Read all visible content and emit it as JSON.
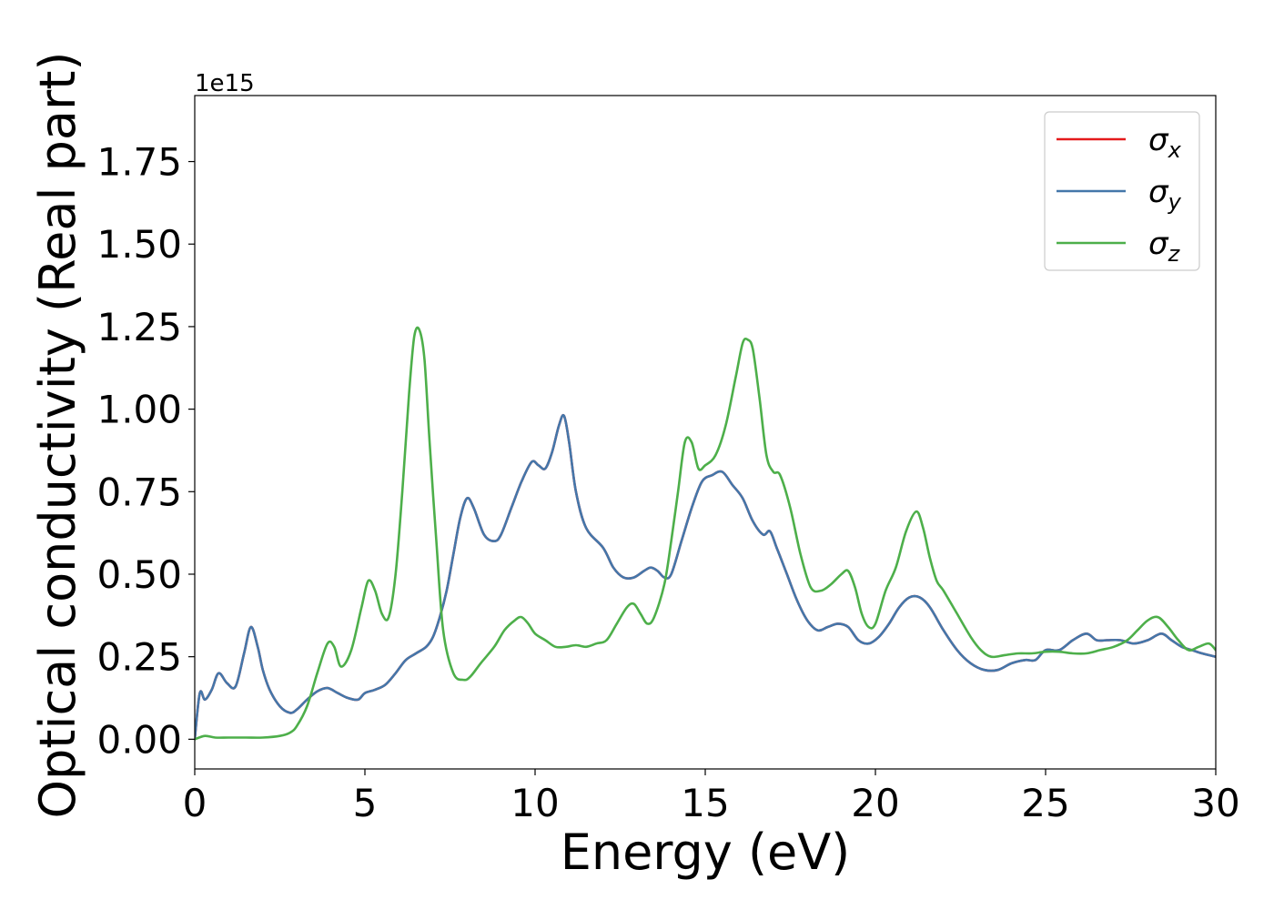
{
  "chart_data": {
    "type": "line",
    "xlabel": "Energy (eV)",
    "ylabel": "Optical conductivity (Real part)",
    "offset_text": "1e15",
    "xlim": [
      0,
      30
    ],
    "ylim": [
      -0.09,
      1.95
    ],
    "xticks": [
      0,
      5,
      10,
      15,
      20,
      25,
      30
    ],
    "xtick_labels": [
      "0",
      "5",
      "10",
      "15",
      "20",
      "25",
      "30"
    ],
    "yticks": [
      0.0,
      0.25,
      0.5,
      0.75,
      1.0,
      1.25,
      1.5,
      1.75
    ],
    "ytick_labels": [
      "0.00",
      "0.25",
      "0.50",
      "0.75",
      "1.00",
      "1.25",
      "1.50",
      "1.75"
    ],
    "grid": false,
    "legend_position": "top-right",
    "series": [
      {
        "name": "σ",
        "subscript": "x",
        "color": "#e41a1c",
        "x": [
          0,
          0.15,
          0.3,
          0.5,
          0.7,
          0.95,
          1.2,
          1.45,
          1.65,
          1.85,
          2.0,
          2.2,
          2.5,
          2.8,
          3.0,
          3.3,
          3.6,
          3.9,
          4.2,
          4.5,
          4.8,
          5.0,
          5.3,
          5.6,
          5.9,
          6.2,
          6.5,
          6.8,
          7.0,
          7.2,
          7.4,
          7.6,
          7.8,
          8.0,
          8.2,
          8.5,
          8.8,
          9.0,
          9.3,
          9.6,
          9.9,
          10.1,
          10.3,
          10.5,
          10.7,
          10.85,
          11.0,
          11.2,
          11.5,
          12.0,
          12.3,
          12.6,
          12.9,
          13.2,
          13.4,
          13.6,
          13.8,
          14.0,
          14.3,
          14.6,
          14.9,
          15.2,
          15.5,
          15.8,
          16.1,
          16.4,
          16.7,
          16.9,
          17.1,
          17.4,
          17.7,
          18.0,
          18.3,
          18.6,
          18.9,
          19.2,
          19.5,
          19.8,
          20.1,
          20.4,
          20.7,
          21.0,
          21.3,
          21.6,
          22.0,
          22.4,
          22.8,
          23.2,
          23.6,
          24.0,
          24.4,
          24.7,
          25.0,
          25.4,
          25.8,
          26.2,
          26.5,
          26.8,
          27.2,
          27.6,
          28.0,
          28.4,
          28.7,
          29.0,
          29.3,
          29.6,
          30.0
        ],
        "values": [
          0,
          0.14,
          0.12,
          0.15,
          0.2,
          0.17,
          0.16,
          0.26,
          0.34,
          0.28,
          0.21,
          0.15,
          0.1,
          0.08,
          0.09,
          0.12,
          0.145,
          0.155,
          0.14,
          0.125,
          0.12,
          0.14,
          0.15,
          0.165,
          0.2,
          0.24,
          0.26,
          0.28,
          0.31,
          0.37,
          0.45,
          0.56,
          0.67,
          0.73,
          0.7,
          0.62,
          0.6,
          0.62,
          0.7,
          0.78,
          0.84,
          0.83,
          0.82,
          0.87,
          0.95,
          0.98,
          0.9,
          0.75,
          0.64,
          0.58,
          0.52,
          0.49,
          0.49,
          0.51,
          0.52,
          0.51,
          0.49,
          0.5,
          0.6,
          0.7,
          0.78,
          0.8,
          0.81,
          0.77,
          0.73,
          0.66,
          0.62,
          0.63,
          0.58,
          0.5,
          0.42,
          0.36,
          0.33,
          0.34,
          0.35,
          0.34,
          0.3,
          0.29,
          0.31,
          0.35,
          0.4,
          0.43,
          0.43,
          0.4,
          0.33,
          0.27,
          0.23,
          0.21,
          0.21,
          0.23,
          0.24,
          0.24,
          0.27,
          0.27,
          0.3,
          0.32,
          0.3,
          0.3,
          0.3,
          0.29,
          0.3,
          0.32,
          0.3,
          0.28,
          0.27,
          0.26,
          0.25
        ]
      },
      {
        "name": "σ",
        "subscript": "y",
        "color": "#4477aa",
        "x": [
          0,
          0.15,
          0.3,
          0.5,
          0.7,
          0.95,
          1.2,
          1.45,
          1.65,
          1.85,
          2.0,
          2.2,
          2.5,
          2.8,
          3.0,
          3.3,
          3.6,
          3.9,
          4.2,
          4.5,
          4.8,
          5.0,
          5.3,
          5.6,
          5.9,
          6.2,
          6.5,
          6.8,
          7.0,
          7.2,
          7.4,
          7.6,
          7.8,
          8.0,
          8.2,
          8.5,
          8.8,
          9.0,
          9.3,
          9.6,
          9.9,
          10.1,
          10.3,
          10.5,
          10.7,
          10.85,
          11.0,
          11.2,
          11.5,
          12.0,
          12.3,
          12.6,
          12.9,
          13.2,
          13.4,
          13.6,
          13.8,
          14.0,
          14.3,
          14.6,
          14.9,
          15.2,
          15.5,
          15.8,
          16.1,
          16.4,
          16.7,
          16.9,
          17.1,
          17.4,
          17.7,
          18.0,
          18.3,
          18.6,
          18.9,
          19.2,
          19.5,
          19.8,
          20.1,
          20.4,
          20.7,
          21.0,
          21.3,
          21.6,
          22.0,
          22.4,
          22.8,
          23.2,
          23.6,
          24.0,
          24.4,
          24.7,
          25.0,
          25.4,
          25.8,
          26.2,
          26.5,
          26.8,
          27.2,
          27.6,
          28.0,
          28.4,
          28.7,
          29.0,
          29.3,
          29.6,
          30.0
        ],
        "values": [
          0,
          0.14,
          0.12,
          0.15,
          0.2,
          0.17,
          0.16,
          0.26,
          0.34,
          0.28,
          0.21,
          0.15,
          0.1,
          0.08,
          0.09,
          0.12,
          0.145,
          0.155,
          0.14,
          0.125,
          0.12,
          0.14,
          0.15,
          0.165,
          0.2,
          0.24,
          0.26,
          0.28,
          0.31,
          0.37,
          0.45,
          0.56,
          0.67,
          0.73,
          0.7,
          0.62,
          0.6,
          0.62,
          0.7,
          0.78,
          0.84,
          0.83,
          0.82,
          0.87,
          0.95,
          0.98,
          0.9,
          0.75,
          0.64,
          0.58,
          0.52,
          0.49,
          0.49,
          0.51,
          0.52,
          0.51,
          0.49,
          0.5,
          0.6,
          0.7,
          0.78,
          0.8,
          0.81,
          0.77,
          0.73,
          0.66,
          0.62,
          0.63,
          0.58,
          0.5,
          0.42,
          0.36,
          0.33,
          0.34,
          0.35,
          0.34,
          0.3,
          0.29,
          0.31,
          0.35,
          0.4,
          0.43,
          0.43,
          0.4,
          0.33,
          0.27,
          0.23,
          0.21,
          0.21,
          0.23,
          0.24,
          0.24,
          0.27,
          0.27,
          0.3,
          0.32,
          0.3,
          0.3,
          0.3,
          0.29,
          0.3,
          0.32,
          0.3,
          0.28,
          0.27,
          0.26,
          0.25
        ]
      },
      {
        "name": "σ",
        "subscript": "z",
        "color": "#4daf4a",
        "x": [
          0,
          0.3,
          0.6,
          1.0,
          1.5,
          2.0,
          2.5,
          2.8,
          3.0,
          3.3,
          3.6,
          3.9,
          4.1,
          4.3,
          4.6,
          4.9,
          5.1,
          5.3,
          5.5,
          5.7,
          5.9,
          6.1,
          6.3,
          6.45,
          6.6,
          6.75,
          6.9,
          7.1,
          7.3,
          7.6,
          7.9,
          8.1,
          8.4,
          8.8,
          9.1,
          9.4,
          9.6,
          9.8,
          10.0,
          10.3,
          10.6,
          10.9,
          11.2,
          11.5,
          11.8,
          12.1,
          12.4,
          12.7,
          12.9,
          13.1,
          13.3,
          13.5,
          13.8,
          14.0,
          14.2,
          14.4,
          14.6,
          14.8,
          15.0,
          15.3,
          15.6,
          15.9,
          16.1,
          16.25,
          16.4,
          16.6,
          16.8,
          17.0,
          17.2,
          17.5,
          17.8,
          18.1,
          18.4,
          18.7,
          19.0,
          19.2,
          19.4,
          19.6,
          19.8,
          20.0,
          20.3,
          20.6,
          20.9,
          21.2,
          21.4,
          21.6,
          21.8,
          22.0,
          22.4,
          22.8,
          23.1,
          23.4,
          23.8,
          24.2,
          24.6,
          25.0,
          25.4,
          25.8,
          26.2,
          26.6,
          27.0,
          27.4,
          27.7,
          28.0,
          28.3,
          28.6,
          28.9,
          29.2,
          29.5,
          29.8,
          30.0
        ],
        "values": [
          0,
          0.01,
          0.005,
          0.005,
          0.005,
          0.005,
          0.01,
          0.02,
          0.04,
          0.1,
          0.2,
          0.29,
          0.28,
          0.22,
          0.27,
          0.4,
          0.48,
          0.45,
          0.38,
          0.37,
          0.5,
          0.75,
          1.05,
          1.22,
          1.24,
          1.15,
          0.9,
          0.6,
          0.33,
          0.2,
          0.18,
          0.19,
          0.23,
          0.28,
          0.33,
          0.36,
          0.37,
          0.35,
          0.32,
          0.3,
          0.28,
          0.28,
          0.285,
          0.28,
          0.29,
          0.3,
          0.35,
          0.4,
          0.41,
          0.38,
          0.35,
          0.37,
          0.47,
          0.6,
          0.75,
          0.9,
          0.9,
          0.82,
          0.83,
          0.86,
          0.95,
          1.1,
          1.2,
          1.21,
          1.18,
          1.03,
          0.86,
          0.81,
          0.8,
          0.7,
          0.56,
          0.46,
          0.45,
          0.47,
          0.5,
          0.51,
          0.46,
          0.38,
          0.34,
          0.35,
          0.45,
          0.52,
          0.63,
          0.69,
          0.64,
          0.55,
          0.48,
          0.45,
          0.38,
          0.31,
          0.27,
          0.25,
          0.255,
          0.26,
          0.26,
          0.265,
          0.265,
          0.26,
          0.26,
          0.27,
          0.28,
          0.3,
          0.33,
          0.36,
          0.37,
          0.34,
          0.3,
          0.27,
          0.28,
          0.29,
          0.27
        ]
      }
    ]
  }
}
